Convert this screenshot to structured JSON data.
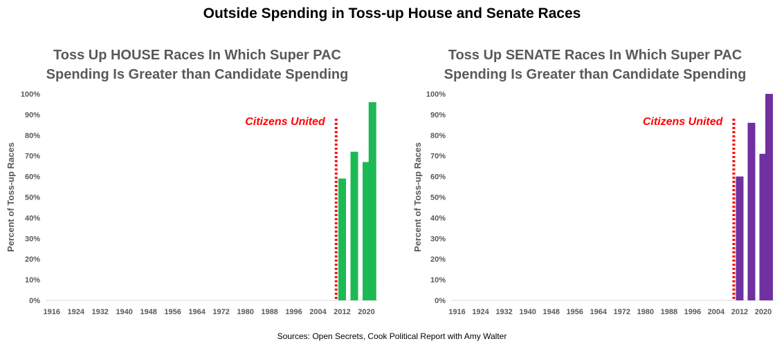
{
  "title": "Outside Spending in Toss-up House and Senate Races",
  "source": "Sources: Open Secrets, Cook Political Report with Amy Walter",
  "chart_data": [
    {
      "type": "bar",
      "title_lines": [
        "Toss Up HOUSE Races In Which Super PAC",
        "Spending Is Greater than Candidate Spending"
      ],
      "ylabel": "Percent of Toss-up Races",
      "xlabel": "",
      "ylim": [
        0,
        100
      ],
      "yticks": [
        "0%",
        "10%",
        "20%",
        "30%",
        "40%",
        "50%",
        "60%",
        "70%",
        "80%",
        "90%",
        "100%"
      ],
      "xlim": [
        1914,
        2024
      ],
      "xticks": [
        "1916",
        "1924",
        "1932",
        "1940",
        "1948",
        "1956",
        "1964",
        "1972",
        "1980",
        "1988",
        "1996",
        "2004",
        "2012",
        "2020"
      ],
      "categories": [
        "2012",
        "2016",
        "2020",
        "2022"
      ],
      "x": [
        2012,
        2016,
        2020,
        2022
      ],
      "values": [
        59,
        72,
        67,
        96
      ],
      "bar_color": "#1db954",
      "annotation": {
        "text": "Citizens United",
        "x": 2010,
        "color": "#ff0000"
      },
      "grid": false
    },
    {
      "type": "bar",
      "title_lines": [
        "Toss Up SENATE Races In Which Super PAC",
        "Spending Is Greater than Candidate Spending"
      ],
      "ylabel": "Percent of Toss-up Races",
      "xlabel": "",
      "ylim": [
        0,
        100
      ],
      "yticks": [
        "0%",
        "10%",
        "20%",
        "30%",
        "40%",
        "50%",
        "60%",
        "70%",
        "80%",
        "90%",
        "100%"
      ],
      "xlim": [
        1914,
        2024
      ],
      "xticks": [
        "1916",
        "1924",
        "1932",
        "1940",
        "1948",
        "1956",
        "1964",
        "1972",
        "1980",
        "1988",
        "1996",
        "2004",
        "2012",
        "2020"
      ],
      "categories": [
        "2012",
        "2016",
        "2020",
        "2022"
      ],
      "x": [
        2012,
        2016,
        2020,
        2022
      ],
      "values": [
        60,
        86,
        71,
        100
      ],
      "bar_color": "#7030a0",
      "annotation": {
        "text": "Citizens United",
        "x": 2010,
        "color": "#ff0000"
      },
      "grid": false
    }
  ]
}
